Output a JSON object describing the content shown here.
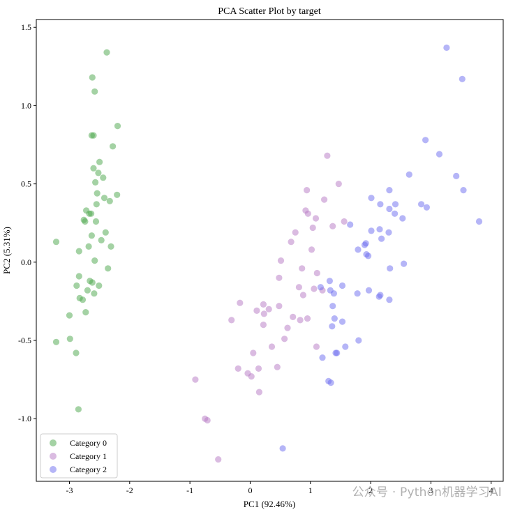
{
  "chart_data": {
    "type": "scatter",
    "title": "PCA Scatter Plot by target",
    "xlabel": "PC1 (92.46%)",
    "ylabel": "PC2 (5.31%)",
    "xlim": [
      -3.55,
      4.2
    ],
    "ylim": [
      -1.4,
      1.55
    ],
    "xticks": [
      -3,
      -2,
      -1,
      0,
      1,
      2,
      3,
      4
    ],
    "yticks": [
      -1.0,
      -0.5,
      0.0,
      0.5,
      1.0,
      1.5
    ],
    "xtick_labels": [
      "-3",
      "-2",
      "-1",
      "0",
      "1",
      "2",
      "3",
      "4"
    ],
    "ytick_labels": [
      "-1.0",
      "-0.5",
      "0.0",
      "0.5",
      "1.0",
      "1.5"
    ],
    "grid": false,
    "legend_position": "bottom-left",
    "series": [
      {
        "name": "Category 0",
        "color": "#4aa64a",
        "points": [
          [
            -2.38,
            1.34
          ],
          [
            -2.62,
            1.18
          ],
          [
            -2.58,
            1.09
          ],
          [
            -2.2,
            0.87
          ],
          [
            -2.63,
            0.81
          ],
          [
            -2.6,
            0.81
          ],
          [
            -2.28,
            0.74
          ],
          [
            -2.5,
            0.64
          ],
          [
            -2.6,
            0.6
          ],
          [
            -2.52,
            0.57
          ],
          [
            -2.44,
            0.54
          ],
          [
            -2.57,
            0.51
          ],
          [
            -2.54,
            0.44
          ],
          [
            -2.42,
            0.41
          ],
          [
            -2.33,
            0.39
          ],
          [
            -2.21,
            0.43
          ],
          [
            -2.55,
            0.37
          ],
          [
            -2.72,
            0.33
          ],
          [
            -2.67,
            0.31
          ],
          [
            -2.64,
            0.31
          ],
          [
            -2.76,
            0.27
          ],
          [
            -2.74,
            0.26
          ],
          [
            -3.22,
            0.13
          ],
          [
            -2.56,
            0.26
          ],
          [
            -2.4,
            0.19
          ],
          [
            -2.63,
            0.17
          ],
          [
            -2.47,
            0.14
          ],
          [
            -2.31,
            0.1
          ],
          [
            -2.68,
            0.1
          ],
          [
            -2.84,
            0.07
          ],
          [
            -2.58,
            0.01
          ],
          [
            -2.36,
            -0.04
          ],
          [
            -2.84,
            -0.09
          ],
          [
            -2.66,
            -0.12
          ],
          [
            -2.62,
            -0.13
          ],
          [
            -2.51,
            -0.15
          ],
          [
            -2.88,
            -0.15
          ],
          [
            -2.7,
            -0.18
          ],
          [
            -2.59,
            -0.2
          ],
          [
            -2.83,
            -0.23
          ],
          [
            -2.78,
            -0.24
          ],
          [
            -2.73,
            -0.32
          ],
          [
            -3.0,
            -0.34
          ],
          [
            -2.99,
            -0.49
          ],
          [
            -3.22,
            -0.51
          ],
          [
            -2.89,
            -0.58
          ],
          [
            -2.85,
            -0.94
          ]
        ]
      },
      {
        "name": "Category 1",
        "color": "#b577c4",
        "points": [
          [
            1.28,
            0.68
          ],
          [
            1.47,
            0.5
          ],
          [
            0.94,
            0.46
          ],
          [
            1.23,
            0.4
          ],
          [
            0.92,
            0.33
          ],
          [
            0.96,
            0.31
          ],
          [
            1.09,
            0.28
          ],
          [
            1.56,
            0.26
          ],
          [
            1.04,
            0.22
          ],
          [
            1.37,
            0.23
          ],
          [
            0.75,
            0.19
          ],
          [
            0.68,
            0.13
          ],
          [
            1.02,
            0.08
          ],
          [
            0.51,
            0.01
          ],
          [
            0.86,
            -0.04
          ],
          [
            1.11,
            -0.07
          ],
          [
            0.48,
            -0.1
          ],
          [
            1.06,
            -0.17
          ],
          [
            0.81,
            -0.16
          ],
          [
            1.2,
            -0.18
          ],
          [
            0.88,
            -0.21
          ],
          [
            -0.17,
            -0.26
          ],
          [
            0.22,
            -0.27
          ],
          [
            0.48,
            -0.28
          ],
          [
            0.31,
            -0.3
          ],
          [
            0.11,
            -0.31
          ],
          [
            0.71,
            -0.35
          ],
          [
            0.95,
            -0.36
          ],
          [
            0.23,
            -0.33
          ],
          [
            -0.31,
            -0.37
          ],
          [
            0.83,
            -0.37
          ],
          [
            0.22,
            -0.4
          ],
          [
            0.62,
            -0.42
          ],
          [
            0.57,
            -0.49
          ],
          [
            1.1,
            -0.54
          ],
          [
            0.36,
            -0.54
          ],
          [
            0.05,
            -0.58
          ],
          [
            0.45,
            -0.67
          ],
          [
            -0.2,
            -0.68
          ],
          [
            0.14,
            -0.68
          ],
          [
            -0.04,
            -0.71
          ],
          [
            0.15,
            -0.83
          ],
          [
            -0.91,
            -0.75
          ],
          [
            -0.75,
            -1.0
          ],
          [
            -0.71,
            -1.01
          ],
          [
            -0.53,
            -1.26
          ],
          [
            0.02,
            -0.73
          ]
        ]
      },
      {
        "name": "Category 2",
        "color": "#6b6bef",
        "points": [
          [
            3.26,
            1.37
          ],
          [
            3.52,
            1.17
          ],
          [
            2.91,
            0.78
          ],
          [
            3.14,
            0.69
          ],
          [
            3.42,
            0.55
          ],
          [
            3.54,
            0.46
          ],
          [
            2.64,
            0.56
          ],
          [
            2.31,
            0.46
          ],
          [
            2.01,
            0.41
          ],
          [
            2.16,
            0.37
          ],
          [
            2.31,
            0.34
          ],
          [
            2.41,
            0.37
          ],
          [
            2.84,
            0.37
          ],
          [
            2.93,
            0.35
          ],
          [
            2.4,
            0.31
          ],
          [
            2.53,
            0.28
          ],
          [
            1.66,
            0.24
          ],
          [
            3.8,
            0.26
          ],
          [
            2.01,
            0.2
          ],
          [
            2.15,
            0.21
          ],
          [
            2.3,
            0.19
          ],
          [
            1.9,
            0.11
          ],
          [
            1.92,
            0.12
          ],
          [
            2.18,
            0.15
          ],
          [
            1.79,
            0.08
          ],
          [
            1.93,
            0.05
          ],
          [
            1.96,
            0.04
          ],
          [
            2.55,
            -0.01
          ],
          [
            2.32,
            -0.04
          ],
          [
            1.32,
            -0.12
          ],
          [
            1.53,
            -0.15
          ],
          [
            1.33,
            -0.18
          ],
          [
            1.17,
            -0.16
          ],
          [
            1.39,
            -0.2
          ],
          [
            1.78,
            -0.2
          ],
          [
            1.97,
            -0.18
          ],
          [
            2.16,
            -0.21
          ],
          [
            2.14,
            -0.22
          ],
          [
            2.31,
            -0.24
          ],
          [
            1.37,
            -0.28
          ],
          [
            1.4,
            -0.36
          ],
          [
            1.53,
            -0.38
          ],
          [
            1.36,
            -0.41
          ],
          [
            1.8,
            -0.5
          ],
          [
            1.58,
            -0.54
          ],
          [
            1.44,
            -0.58
          ],
          [
            1.42,
            -0.58
          ],
          [
            1.2,
            -0.61
          ],
          [
            1.3,
            -0.76
          ],
          [
            1.34,
            -0.77
          ],
          [
            0.54,
            -1.19
          ]
        ]
      }
    ]
  },
  "watermark": "公众号 · Python机器学习AI"
}
